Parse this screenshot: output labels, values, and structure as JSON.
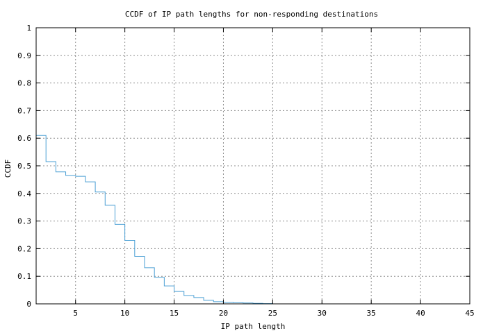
{
  "chart_data": {
    "type": "line",
    "title": "CCDF of IP path lengths for non-responding destinations",
    "xlabel": "IP path length",
    "ylabel": "CCDF",
    "xlim": [
      1,
      45
    ],
    "ylim": [
      0,
      1
    ],
    "x_ticks": [
      5,
      10,
      15,
      20,
      25,
      30,
      35,
      40,
      45
    ],
    "y_ticks": [
      0,
      0.1,
      0.2,
      0.3,
      0.4,
      0.5,
      0.6,
      0.7,
      0.8,
      0.9,
      1
    ],
    "x_tick_labels": [
      "5",
      "10",
      "15",
      "20",
      "25",
      "30",
      "35",
      "40",
      "45"
    ],
    "y_tick_labels": [
      "0",
      "0.1",
      "0.2",
      "0.3",
      "0.4",
      "0.5",
      "0.6",
      "0.7",
      "0.8",
      "0.9",
      "1"
    ],
    "grid": true,
    "step": true,
    "color": "#4a9fd4",
    "series": [
      {
        "x": [
          1,
          2,
          3,
          4,
          5,
          6,
          7,
          8,
          9,
          10,
          11,
          12,
          13,
          14,
          15,
          16,
          17,
          18,
          19,
          20,
          21,
          22,
          23,
          24
        ],
        "y": [
          0.61,
          0.515,
          0.478,
          0.465,
          0.462,
          0.442,
          0.405,
          0.357,
          0.288,
          0.23,
          0.172,
          0.131,
          0.096,
          0.065,
          0.045,
          0.03,
          0.023,
          0.013,
          0.008,
          0.005,
          0.004,
          0.003,
          0.002,
          0.001
        ]
      }
    ]
  }
}
